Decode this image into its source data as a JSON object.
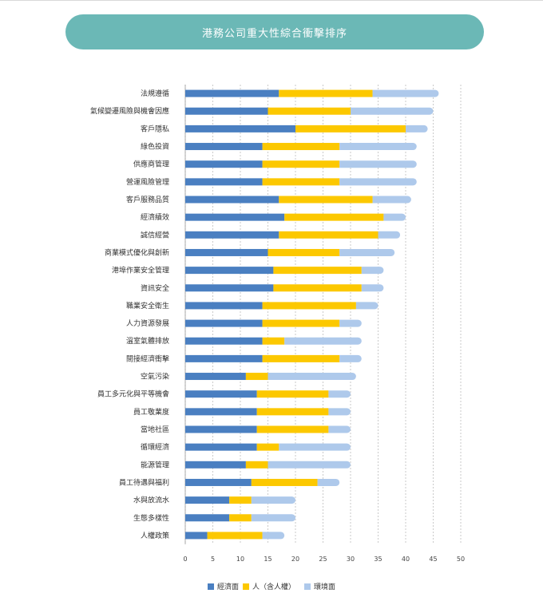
{
  "title": "港務公司重大性綜合衝擊排序",
  "chart_data": {
    "type": "bar",
    "orientation": "horizontal",
    "stacked": true,
    "title": "港務公司重大性綜合衝擊排序",
    "xlim": [
      0,
      50
    ],
    "xticks": [
      0,
      5,
      10,
      15,
      20,
      25,
      30,
      35,
      40,
      45,
      50
    ],
    "grid": "vertical-dashed",
    "legend_position": "bottom",
    "categories": [
      "法規遵循",
      "氣候變遷風險與機會因應",
      "客戶隱私",
      "綠色投資",
      "供應商管理",
      "營運風險管理",
      "客戶服務品質",
      "經濟績效",
      "誠信經營",
      "商業模式優化與創新",
      "港埠作業安全管理",
      "資訊安全",
      "職業安全衛生",
      "人力資源發展",
      "溫室氣體排放",
      "間接經濟衝擊",
      "空氣污染",
      "員工多元化與平等機會",
      "員工敬業度",
      "當地社區",
      "循環經濟",
      "能源管理",
      "員工待遇與福利",
      "水與放流水",
      "生態多樣性",
      "人權政策"
    ],
    "series": [
      {
        "name": "經濟面",
        "color": "#4a7fc1",
        "values": [
          17,
          15,
          20,
          14,
          14,
          14,
          17,
          18,
          17,
          15,
          16,
          16,
          14,
          14,
          14,
          14,
          11,
          13,
          13,
          13,
          13,
          11,
          12,
          8,
          8,
          4
        ]
      },
      {
        "name": "人（含人權）",
        "color": "#fcc800",
        "values": [
          17,
          15,
          20,
          14,
          14,
          14,
          17,
          18,
          18,
          13,
          16,
          16,
          17,
          14,
          4,
          14,
          4,
          13,
          13,
          13,
          4,
          4,
          12,
          4,
          4,
          10
        ]
      },
      {
        "name": "環境面",
        "color": "#aec9eb",
        "values": [
          12,
          15,
          4,
          14,
          14,
          14,
          7,
          4,
          4,
          10,
          4,
          4,
          4,
          4,
          14,
          4,
          16,
          4,
          4,
          4,
          13,
          15,
          4,
          8,
          8,
          4
        ]
      }
    ]
  }
}
